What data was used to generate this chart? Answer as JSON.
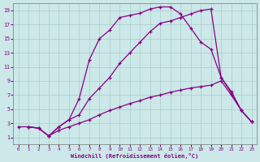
{
  "bg_color": "#cce8e8",
  "grid_color": "#aacccc",
  "line_color": "#880088",
  "xlabel": "Windchill (Refroidissement éolien,°C)",
  "xmin": -0.5,
  "xmax": 23.5,
  "ymin": 0,
  "ymax": 20,
  "yticks": [
    1,
    3,
    5,
    7,
    9,
    11,
    13,
    15,
    17,
    19
  ],
  "xticks": [
    0,
    1,
    2,
    3,
    4,
    5,
    6,
    7,
    8,
    9,
    10,
    11,
    12,
    13,
    14,
    15,
    16,
    17,
    18,
    19,
    20,
    21,
    22,
    23
  ],
  "curve1_x": [
    1,
    2,
    3,
    4,
    5,
    6,
    7,
    8,
    9,
    10,
    11,
    12,
    13,
    14,
    15,
    16,
    17,
    18,
    19,
    20,
    21,
    22,
    23
  ],
  "curve1_y": [
    2.5,
    2.3,
    1.2,
    2.5,
    3.5,
    6.5,
    12.0,
    15.0,
    16.2,
    18.0,
    18.3,
    18.6,
    19.2,
    19.5,
    19.5,
    18.5,
    16.5,
    14.5,
    13.5,
    9.5,
    7.5,
    4.8,
    3.2
  ],
  "curve2_x": [
    1,
    2,
    3,
    4,
    5,
    6,
    7,
    8,
    9,
    10,
    11,
    12,
    13,
    14,
    15,
    16,
    17,
    18,
    19,
    20,
    21,
    22,
    23
  ],
  "curve2_y": [
    2.5,
    2.3,
    1.2,
    2.5,
    3.5,
    4.2,
    6.5,
    8.0,
    9.5,
    11.5,
    13.0,
    14.5,
    16.0,
    17.2,
    17.5,
    18.0,
    18.5,
    19.0,
    19.2,
    9.5,
    7.3,
    4.8,
    3.2
  ],
  "curve3_x": [
    0,
    1,
    2,
    3,
    4,
    5,
    6,
    7,
    8,
    9,
    10,
    11,
    12,
    13,
    14,
    15,
    16,
    17,
    18,
    19,
    20,
    21,
    22,
    23
  ],
  "curve3_y": [
    2.5,
    2.5,
    2.3,
    1.2,
    2.0,
    2.5,
    3.0,
    3.5,
    4.2,
    4.8,
    5.3,
    5.8,
    6.2,
    6.7,
    7.0,
    7.4,
    7.7,
    8.0,
    8.2,
    8.4,
    9.0,
    7.0,
    4.8,
    3.2
  ]
}
